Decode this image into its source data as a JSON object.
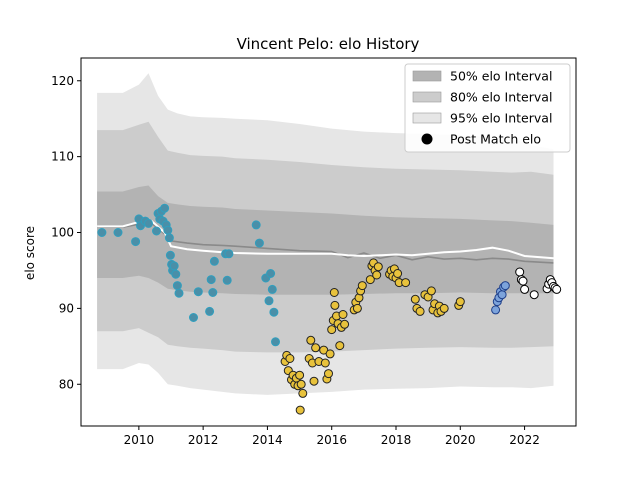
{
  "chart_data": {
    "type": "scatter",
    "title": "Vincent Pelo: elo History",
    "xlabel": "",
    "ylabel": "elo score",
    "xlim": [
      2008.2,
      2023.6
    ],
    "ylim": [
      74.5,
      123
    ],
    "x_ticks": [
      2010,
      2012,
      2014,
      2016,
      2018,
      2020,
      2022
    ],
    "x_tick_labels": [
      "2010",
      "2012",
      "2014",
      "2016",
      "2018",
      "2020",
      "2022"
    ],
    "y_ticks": [
      80,
      90,
      100,
      110,
      120
    ],
    "y_tick_labels": [
      "80",
      "90",
      "100",
      "110",
      "120"
    ],
    "legend": {
      "position": "top-right",
      "entries": [
        {
          "label": "50% elo Interval",
          "kind": "band",
          "color": "#b3b3b3"
        },
        {
          "label": "80% elo Interval",
          "kind": "band",
          "color": "#cccccc"
        },
        {
          "label": "95% elo Interval",
          "kind": "band",
          "color": "#e6e6e6"
        },
        {
          "label": "Post Match elo",
          "kind": "marker",
          "color": "#000000"
        }
      ]
    },
    "band_x": [
      2008.7,
      2009.5,
      2010.0,
      2010.3,
      2010.6,
      2010.9,
      2011.2,
      2011.6,
      2012.0,
      2012.6,
      2013.0,
      2014.0,
      2015.0,
      2016.0,
      2017.0,
      2018.0,
      2019.0,
      2020.0,
      2021.0,
      2021.6,
      2022.2,
      2022.9
    ],
    "bands": {
      "p95": {
        "upper": [
          118.4,
          118.4,
          119.5,
          121.0,
          118.0,
          116.2,
          115.7,
          115.3,
          115.2,
          115.1,
          115.0,
          114.8,
          114.3,
          113.7,
          113.3,
          113.1,
          113.0,
          112.8,
          112.6,
          112.4,
          111.5,
          111.0
        ],
        "lower": [
          82.0,
          82.0,
          82.8,
          82.6,
          81.5,
          80.0,
          79.8,
          79.5,
          79.3,
          79.0,
          78.8,
          78.6,
          78.8,
          79.0,
          79.3,
          79.4,
          79.5,
          79.7,
          79.6,
          79.6,
          79.5,
          79.8
        ]
      },
      "p80": {
        "upper": [
          113.5,
          113.5,
          114.2,
          114.6,
          112.6,
          110.8,
          110.5,
          110.2,
          110.1,
          110.0,
          109.8,
          109.6,
          109.3,
          108.9,
          108.6,
          108.4,
          108.3,
          108.2,
          108.0,
          107.9,
          108.0,
          107.6
        ],
        "lower": [
          87.0,
          87.0,
          87.4,
          86.8,
          86.2,
          85.2,
          85.0,
          84.8,
          84.7,
          84.5,
          84.3,
          84.2,
          84.2,
          84.3,
          84.5,
          84.7,
          84.8,
          84.9,
          84.8,
          84.8,
          84.9,
          85.0
        ]
      },
      "p50": {
        "upper": [
          105.4,
          105.4,
          106.0,
          106.2,
          104.8,
          103.9,
          103.7,
          103.5,
          103.4,
          103.3,
          103.1,
          102.9,
          102.7,
          102.5,
          102.2,
          102.0,
          101.9,
          101.8,
          101.6,
          101.5,
          101.3,
          101.0
        ],
        "lower": [
          94.0,
          94.0,
          94.3,
          94.0,
          93.4,
          92.6,
          92.4,
          92.2,
          92.1,
          92.0,
          91.9,
          91.8,
          91.8,
          91.8,
          91.9,
          92.0,
          92.0,
          92.1,
          92.0,
          92.0,
          92.0,
          92.0
        ]
      }
    },
    "median_x": [
      2008.7,
      2009.5,
      2010.0,
      2010.4,
      2010.8,
      2011.0,
      2011.5,
      2012.0,
      2012.6,
      2013.0,
      2014.0,
      2015.0,
      2016.0,
      2016.5,
      2017.0,
      2017.5,
      2018.0,
      2018.5,
      2019.0,
      2019.5,
      2020.0,
      2020.5,
      2021.0,
      2021.5,
      2022.0,
      2022.9
    ],
    "median_y": [
      100.7,
      100.7,
      101.1,
      101.2,
      99.8,
      98.9,
      98.6,
      98.4,
      98.3,
      98.2,
      97.9,
      97.6,
      97.5,
      96.7,
      97.3,
      96.6,
      97.0,
      96.4,
      96.8,
      96.5,
      96.6,
      96.4,
      96.6,
      96.5,
      96.2,
      96.0
    ],
    "mean_y": [
      100.8,
      100.8,
      101.4,
      101.5,
      100.0,
      98.2,
      97.8,
      97.6,
      97.4,
      97.3,
      97.2,
      97.2,
      97.2,
      97.0,
      96.9,
      97.0,
      97.1,
      97.0,
      97.2,
      97.4,
      97.5,
      97.7,
      98.0,
      97.6,
      96.9,
      96.6
    ],
    "series": [
      {
        "name": "",
        "color": "#4a8fa8",
        "edge": "#2f9fbf",
        "points": [
          [
            2008.85,
            100.0
          ],
          [
            2009.35,
            100.0
          ],
          [
            2009.9,
            98.8
          ],
          [
            2010.0,
            101.8
          ],
          [
            2010.05,
            100.9
          ],
          [
            2010.2,
            101.5
          ],
          [
            2010.3,
            101.2
          ],
          [
            2010.55,
            100.2
          ],
          [
            2010.6,
            102.5
          ],
          [
            2010.65,
            101.8
          ],
          [
            2010.7,
            102.8
          ],
          [
            2010.75,
            101.5
          ],
          [
            2010.8,
            103.2
          ],
          [
            2010.85,
            101.0
          ],
          [
            2010.9,
            100.3
          ],
          [
            2010.95,
            99.3
          ],
          [
            2010.98,
            97.0
          ],
          [
            2011.02,
            95.8
          ],
          [
            2011.05,
            95.0
          ],
          [
            2011.1,
            95.6
          ],
          [
            2011.15,
            94.5
          ],
          [
            2011.2,
            93.0
          ],
          [
            2011.25,
            92.0
          ],
          [
            2011.7,
            88.8
          ],
          [
            2011.85,
            92.2
          ],
          [
            2012.2,
            89.6
          ],
          [
            2012.25,
            93.8
          ],
          [
            2012.3,
            92.1
          ],
          [
            2012.35,
            96.2
          ],
          [
            2012.7,
            97.2
          ],
          [
            2012.75,
            93.7
          ],
          [
            2012.8,
            97.2
          ],
          [
            2013.65,
            101.0
          ],
          [
            2013.75,
            98.6
          ],
          [
            2013.95,
            94.0
          ],
          [
            2014.05,
            91.0
          ],
          [
            2014.1,
            94.6
          ],
          [
            2014.15,
            92.5
          ],
          [
            2014.2,
            89.5
          ],
          [
            2014.25,
            85.6
          ]
        ]
      },
      {
        "name": "",
        "color": "#e8c23c",
        "edge": "#222222",
        "points": [
          [
            2014.55,
            83.0
          ],
          [
            2014.6,
            83.8
          ],
          [
            2014.65,
            81.8
          ],
          [
            2014.7,
            83.4
          ],
          [
            2014.75,
            80.6
          ],
          [
            2014.8,
            81.2
          ],
          [
            2014.85,
            80.0
          ],
          [
            2014.9,
            80.8
          ],
          [
            2014.95,
            79.8
          ],
          [
            2015.0,
            81.2
          ],
          [
            2015.02,
            76.6
          ],
          [
            2015.05,
            80.0
          ],
          [
            2015.1,
            78.8
          ],
          [
            2015.3,
            83.4
          ],
          [
            2015.35,
            85.8
          ],
          [
            2015.4,
            82.8
          ],
          [
            2015.45,
            80.4
          ],
          [
            2015.5,
            84.8
          ],
          [
            2015.6,
            83.0
          ],
          [
            2015.75,
            84.5
          ],
          [
            2015.8,
            82.8
          ],
          [
            2015.85,
            80.7
          ],
          [
            2015.9,
            81.4
          ],
          [
            2015.95,
            84.0
          ],
          [
            2016.0,
            87.2
          ],
          [
            2016.05,
            88.4
          ],
          [
            2016.08,
            92.1
          ],
          [
            2016.1,
            90.4
          ],
          [
            2016.15,
            89.0
          ],
          [
            2016.2,
            88.0
          ],
          [
            2016.25,
            85.1
          ],
          [
            2016.3,
            87.5
          ],
          [
            2016.35,
            89.2
          ],
          [
            2016.4,
            87.9
          ],
          [
            2016.7,
            89.8
          ],
          [
            2016.75,
            90.8
          ],
          [
            2016.8,
            90.0
          ],
          [
            2016.85,
            91.4
          ],
          [
            2016.9,
            92.3
          ],
          [
            2016.95,
            93.0
          ],
          [
            2017.2,
            93.8
          ],
          [
            2017.25,
            95.6
          ],
          [
            2017.3,
            96.0
          ],
          [
            2017.35,
            95.0
          ],
          [
            2017.4,
            94.4
          ],
          [
            2017.45,
            95.5
          ],
          [
            2017.8,
            94.5
          ],
          [
            2017.85,
            95.0
          ],
          [
            2017.9,
            94.2
          ],
          [
            2017.95,
            95.2
          ],
          [
            2018.0,
            94.0
          ],
          [
            2018.05,
            94.6
          ],
          [
            2018.1,
            93.4
          ],
          [
            2018.3,
            93.4
          ],
          [
            2018.6,
            91.2
          ],
          [
            2018.65,
            90.0
          ],
          [
            2018.75,
            89.6
          ],
          [
            2018.9,
            91.8
          ],
          [
            2019.0,
            91.5
          ],
          [
            2019.1,
            92.3
          ],
          [
            2019.15,
            89.8
          ],
          [
            2019.2,
            90.6
          ],
          [
            2019.3,
            89.4
          ],
          [
            2019.35,
            90.3
          ],
          [
            2019.4,
            89.6
          ],
          [
            2019.5,
            90.0
          ],
          [
            2019.95,
            90.4
          ],
          [
            2020.0,
            90.9
          ]
        ]
      },
      {
        "name": "",
        "color": "#7ca3db",
        "edge": "#1e3f8a",
        "points": [
          [
            2021.1,
            89.8
          ],
          [
            2021.15,
            90.9
          ],
          [
            2021.2,
            91.4
          ],
          [
            2021.25,
            92.2
          ],
          [
            2021.3,
            91.8
          ],
          [
            2021.35,
            92.8
          ],
          [
            2021.4,
            93.0
          ]
        ]
      },
      {
        "name": "",
        "color": "#ffffff",
        "edge": "#000000",
        "points": [
          [
            2021.85,
            94.8
          ],
          [
            2021.9,
            93.8
          ],
          [
            2021.95,
            93.6
          ],
          [
            2022.0,
            92.5
          ],
          [
            2022.3,
            91.8
          ],
          [
            2022.7,
            92.6
          ],
          [
            2022.75,
            93.2
          ],
          [
            2022.8,
            93.8
          ],
          [
            2022.85,
            93.4
          ],
          [
            2022.9,
            92.9
          ],
          [
            2022.95,
            92.7
          ],
          [
            2023.0,
            92.5
          ]
        ]
      }
    ]
  }
}
